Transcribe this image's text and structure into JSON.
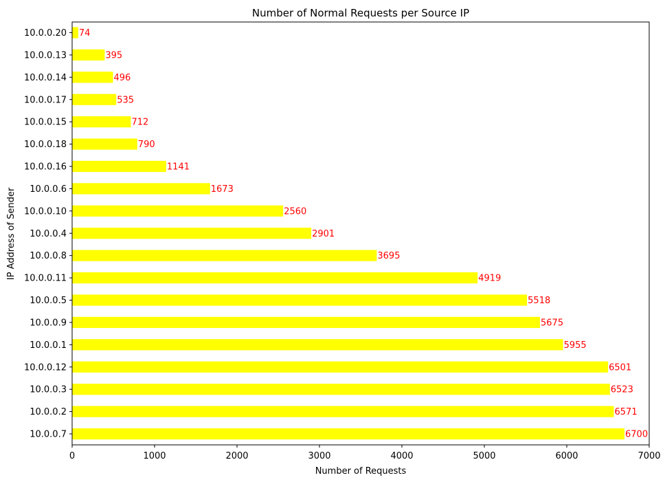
{
  "chart_data": {
    "type": "bar",
    "orientation": "horizontal",
    "title": "Number of Normal Requests per Source IP",
    "xlabel": "Number of Requests",
    "ylabel": "IP Address of Sender",
    "xlim": [
      0,
      7000
    ],
    "xticks": [
      0,
      1000,
      2000,
      3000,
      4000,
      5000,
      6000,
      7000
    ],
    "grid": false,
    "categories": [
      "10.0.0.20",
      "10.0.0.13",
      "10.0.0.14",
      "10.0.0.17",
      "10.0.0.15",
      "10.0.0.18",
      "10.0.0.16",
      "10.0.0.6",
      "10.0.0.10",
      "10.0.0.4",
      "10.0.0.8",
      "10.0.0.11",
      "10.0.0.5",
      "10.0.0.9",
      "10.0.0.1",
      "10.0.0.12",
      "10.0.0.3",
      "10.0.0.2",
      "10.0.0.7"
    ],
    "values": [
      74,
      395,
      496,
      535,
      712,
      790,
      1141,
      1673,
      2560,
      2901,
      3695,
      4919,
      5518,
      5675,
      5955,
      6501,
      6523,
      6571,
      6700
    ],
    "bar_color": "#ffff00",
    "label_color": "#ff0000"
  }
}
